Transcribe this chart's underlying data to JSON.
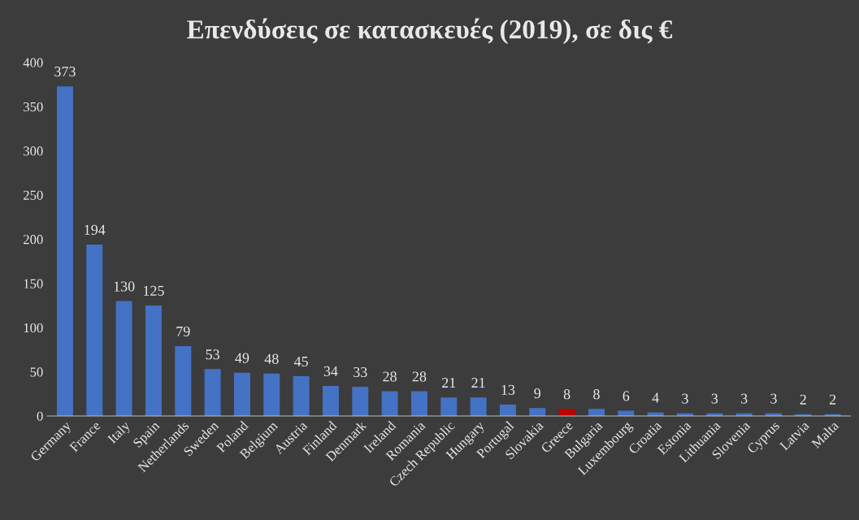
{
  "chart_data": {
    "type": "bar",
    "title": "Επενδύσεις σε κατασκευές (2019), σε δις €",
    "categories": [
      "Germany",
      "France",
      "Italy",
      "Spain",
      "Netherlands",
      "Sweden",
      "Poland",
      "Belgium",
      "Austria",
      "Finland",
      "Denmark",
      "Ireland",
      "Romania",
      "Czech Republic",
      "Hungary",
      "Portugal",
      "Slovakia",
      "Greece",
      "Bulgaria",
      "Luxembourg",
      "Croatia",
      "Estonia",
      "Lithuania",
      "Slovenia",
      "Cyprus",
      "Latvia",
      "Malta"
    ],
    "values": [
      373,
      194,
      130,
      125,
      79,
      53,
      49,
      48,
      45,
      34,
      33,
      28,
      28,
      21,
      21,
      13,
      9,
      8,
      8,
      6,
      4,
      3,
      3,
      3,
      3,
      2,
      2
    ],
    "colors": [
      "#4472c4",
      "#4472c4",
      "#4472c4",
      "#4472c4",
      "#4472c4",
      "#4472c4",
      "#4472c4",
      "#4472c4",
      "#4472c4",
      "#4472c4",
      "#4472c4",
      "#4472c4",
      "#4472c4",
      "#4472c4",
      "#4472c4",
      "#4472c4",
      "#4472c4",
      "#c00000",
      "#4472c4",
      "#4472c4",
      "#4472c4",
      "#4472c4",
      "#4472c4",
      "#4472c4",
      "#4472c4",
      "#4472c4",
      "#4472c4"
    ],
    "ylim": [
      0,
      400
    ],
    "yticks": [
      0,
      50,
      100,
      150,
      200,
      250,
      300,
      350,
      400
    ],
    "grid": false,
    "data_labels": true
  }
}
